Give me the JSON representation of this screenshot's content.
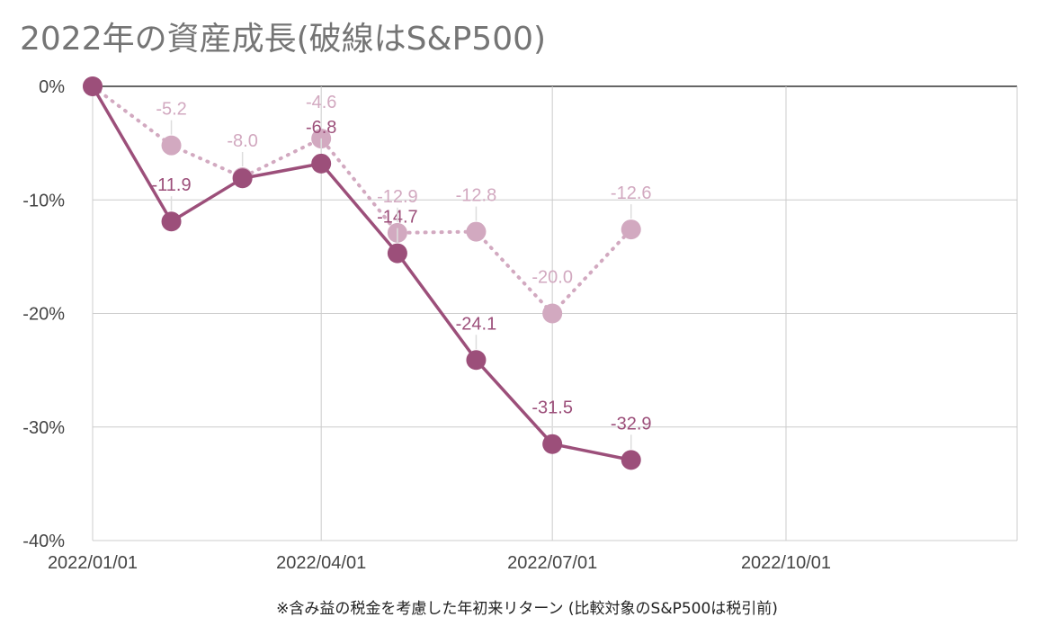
{
  "chart_data": {
    "type": "line",
    "title": "2022年の資産成長(破線はS&P500)",
    "caption": "※含み益の税金を考慮した年初来リターン (比較対象のS&P500は税引前)",
    "x_ticks": [
      "2022/01/01",
      "2022/04/01",
      "2022/07/01",
      "2022/10/01"
    ],
    "xlim": [
      "2022/01/01",
      "2022/12/31"
    ],
    "y_ticks": [
      {
        "value": 0,
        "label": "0%"
      },
      {
        "value": -10,
        "label": "-10%"
      },
      {
        "value": -20,
        "label": "-20%"
      },
      {
        "value": -30,
        "label": "-30%"
      },
      {
        "value": -40,
        "label": "-40%"
      }
    ],
    "ylim": [
      -40,
      0
    ],
    "grid": true,
    "series": [
      {
        "style": "solid",
        "color": "#9c4f7a",
        "points": [
          {
            "x": "2022/01/01",
            "y": 0,
            "label": ""
          },
          {
            "x": "2022/02/01",
            "y": -11.9,
            "label": "-11.9"
          },
          {
            "x": "2022/03/01",
            "y": -8.1,
            "label": ""
          },
          {
            "x": "2022/04/01",
            "y": -6.8,
            "label": "-6.8"
          },
          {
            "x": "2022/05/01",
            "y": -14.7,
            "label": "-14.7"
          },
          {
            "x": "2022/06/01",
            "y": -24.1,
            "label": "-24.1"
          },
          {
            "x": "2022/07/01",
            "y": -31.5,
            "label": "-31.5"
          },
          {
            "x": "2022/08/01",
            "y": -32.9,
            "label": "-32.9"
          }
        ]
      },
      {
        "style": "dotted",
        "color": "#d2a9c0",
        "points": [
          {
            "x": "2022/01/01",
            "y": 0,
            "label": ""
          },
          {
            "x": "2022/02/01",
            "y": -5.2,
            "label": "-5.2"
          },
          {
            "x": "2022/03/01",
            "y": -8.0,
            "label": "-8.0"
          },
          {
            "x": "2022/04/01",
            "y": -4.6,
            "label": "-4.6"
          },
          {
            "x": "2022/05/01",
            "y": -12.9,
            "label": "-12.9"
          },
          {
            "x": "2022/06/01",
            "y": -12.8,
            "label": "-12.8"
          },
          {
            "x": "2022/07/01",
            "y": -20.0,
            "label": "-20.0"
          },
          {
            "x": "2022/08/01",
            "y": -12.6,
            "label": "-12.6"
          }
        ]
      }
    ]
  }
}
